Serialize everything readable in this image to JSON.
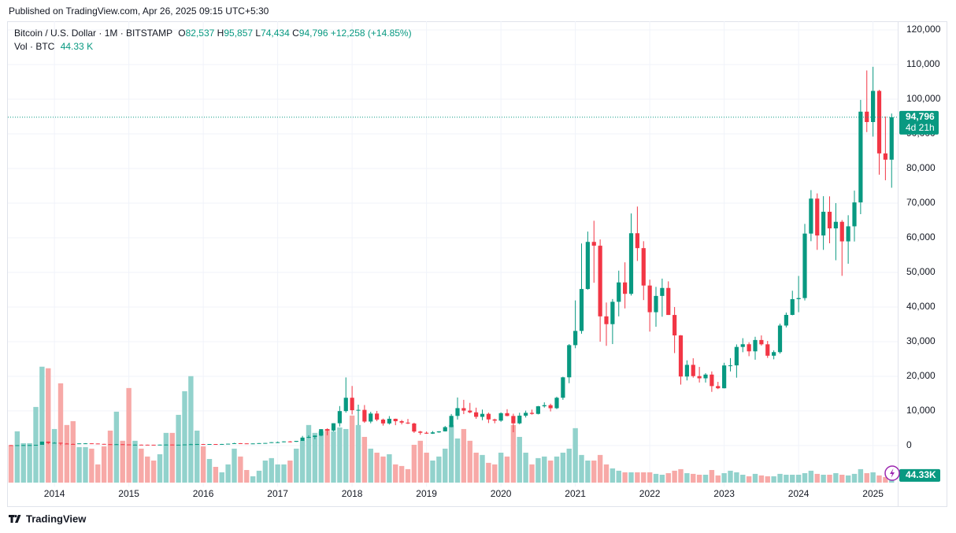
{
  "header": {
    "published": "Published on TradingView.com, Apr 26, 2025 09:15 UTC+5:30",
    "symbol": "Bitcoin / U.S. Dollar · 1M · BITSTAMP",
    "o_label": "O",
    "o": "82,537",
    "h_label": "H",
    "h": "95,857",
    "l_label": "L",
    "l": "74,434",
    "c_label": "C",
    "c": "94,796",
    "change": "+12,258 (+14.85%)",
    "vol_label": "Vol · BTC",
    "vol": "44.33 K"
  },
  "footer": {
    "brand": "TradingView"
  },
  "chart_data": {
    "type": "candlestick",
    "up_color": "#089981",
    "down_color": "#f23645",
    "vol_up_color": "#92d2cc",
    "vol_down_color": "#f7a9a7",
    "last_price_label": "94,796",
    "countdown": "4d 21h",
    "volume_label": "44.33K",
    "ylim": [
      -10700,
      122500
    ],
    "yticks": [
      0,
      {
        "value": 10000,
        "label": "10,000"
      },
      {
        "value": 20000,
        "label": "20,000"
      },
      {
        "value": 30000,
        "label": "30,000"
      },
      {
        "value": 40000,
        "label": "40,000"
      },
      {
        "value": 50000,
        "label": "50,000"
      },
      {
        "value": 60000,
        "label": "60,000"
      },
      {
        "value": 70000,
        "label": "70,000"
      },
      {
        "value": 80000,
        "label": "80,000"
      },
      {
        "value": 90000,
        "label": "90,000"
      },
      {
        "value": 100000,
        "label": "100,000"
      },
      {
        "value": 110000,
        "label": "110,000"
      },
      {
        "value": 120000,
        "label": "120,000"
      }
    ],
    "grid": true,
    "categories": [
      null,
      null,
      null,
      null,
      null,
      null,
      null,
      "2014",
      null,
      null,
      null,
      null,
      null,
      null,
      null,
      null,
      null,
      null,
      null,
      "2015",
      null,
      null,
      null,
      null,
      null,
      null,
      null,
      null,
      null,
      null,
      null,
      "2016",
      null,
      null,
      null,
      null,
      null,
      null,
      null,
      null,
      null,
      null,
      null,
      "2017",
      null,
      null,
      null,
      null,
      null,
      null,
      null,
      null,
      null,
      null,
      null,
      "2018",
      null,
      null,
      null,
      null,
      null,
      null,
      null,
      null,
      null,
      null,
      null,
      "2019",
      null,
      null,
      null,
      null,
      null,
      null,
      null,
      null,
      null,
      null,
      null,
      "2020",
      null,
      null,
      null,
      null,
      null,
      null,
      null,
      null,
      null,
      null,
      null,
      "2021",
      null,
      null,
      null,
      null,
      null,
      null,
      null,
      null,
      null,
      null,
      null,
      "2022",
      null,
      null,
      null,
      null,
      null,
      null,
      null,
      null,
      null,
      null,
      null,
      "2023",
      null,
      null,
      null,
      null,
      null,
      null,
      null,
      null,
      null,
      null,
      null,
      "2024",
      null,
      null,
      null,
      null,
      null,
      null,
      null,
      null,
      null,
      null,
      null,
      "2025",
      null,
      null,
      null
    ],
    "open": [
      129,
      97,
      106,
      141,
      141,
      211,
      1130,
      733,
      800,
      570,
      457,
      448,
      625,
      640,
      586,
      480,
      387,
      338,
      378,
      318,
      217,
      254,
      244,
      236,
      230,
      263,
      283,
      230,
      236,
      313,
      377,
      430,
      369,
      437,
      416,
      448,
      531,
      674,
      624,
      573,
      609,
      698,
      745,
      964,
      971,
      1190,
      1079,
      1348,
      2300,
      2480,
      2870,
      4730,
      4340,
      6440,
      9950,
      13800,
      10200,
      10300,
      6930,
      9240,
      7500,
      6390,
      7730,
      7030,
      6630,
      6370,
      4040,
      3690,
      3440,
      3810,
      4100,
      5320,
      8560,
      10800,
      10090,
      9590,
      8290,
      9150,
      7550,
      7190,
      9350,
      8540,
      6410,
      8630,
      9450,
      9140,
      11340,
      11650,
      10780,
      13800,
      19700,
      28990,
      33100,
      45200,
      58800,
      57700,
      37300,
      35050,
      41500,
      47100,
      43800,
      61300,
      57000,
      46200,
      38500,
      43200,
      45500,
      37700,
      31800,
      19930,
      23300,
      20050,
      19420,
      20490,
      17170,
      16540,
      23130,
      23150,
      28470,
      29250,
      27200,
      30470,
      29230,
      25940,
      26970,
      34650,
      37720,
      42270,
      42580,
      61200,
      71300,
      60650,
      67500,
      62700,
      64600,
      58950,
      63300,
      70200,
      96400,
      93400,
      102400,
      84350,
      82537
    ],
    "high": [
      129,
      111,
      140,
      145,
      220,
      1163,
      1164,
      995,
      844,
      720,
      544,
      627,
      680,
      650,
      600,
      495,
      420,
      460,
      380,
      320,
      265,
      300,
      260,
      248,
      268,
      317,
      286,
      248,
      330,
      502,
      469,
      462,
      447,
      440,
      468,
      550,
      777,
      704,
      630,
      628,
      734,
      760,
      979,
      1160,
      1210,
      1290,
      1350,
      2780,
      2980,
      2920,
      4740,
      4980,
      6470,
      11400,
      19666,
      17200,
      11800,
      11700,
      9760,
      9990,
      7780,
      8500,
      7760,
      7400,
      7680,
      6600,
      4240,
      4070,
      4200,
      4140,
      5640,
      9100,
      13880,
      13200,
      12320,
      10940,
      10370,
      9520,
      7750,
      9580,
      10500,
      9190,
      9460,
      10080,
      10380,
      11440,
      12470,
      12080,
      14100,
      19860,
      29300,
      41900,
      58350,
      61780,
      64900,
      59500,
      41300,
      42300,
      50500,
      52900,
      67000,
      69000,
      59000,
      47900,
      45800,
      48200,
      47400,
      40000,
      31900,
      24600,
      25200,
      22700,
      20900,
      21400,
      18400,
      23900,
      25250,
      29200,
      31000,
      29800,
      31400,
      31800,
      30200,
      27480,
      35200,
      38400,
      44700,
      48970,
      64000,
      73750,
      72800,
      72000,
      71950,
      70000,
      65100,
      66500,
      73600,
      99800,
      108300,
      109350,
      102700,
      95000,
      95857
    ],
    "low": [
      66,
      65,
      101,
      111,
      105,
      210,
      400,
      732,
      102,
      437,
      340,
      420,
      520,
      570,
      442,
      375,
      275,
      310,
      300,
      152,
      210,
      240,
      214,
      228,
      215,
      253,
      162,
      225,
      236,
      312,
      347,
      353,
      366,
      396,
      412,
      436,
      531,
      600,
      470,
      570,
      606,
      690,
      740,
      752,
      920,
      890,
      1060,
      1345,
      2140,
      1830,
      2680,
      2970,
      4110,
      5500,
      9500,
      9000,
      5900,
      6550,
      6430,
      7040,
      5750,
      6070,
      5880,
      6100,
      6200,
      3650,
      3120,
      3380,
      3370,
      3690,
      4060,
      5270,
      7500,
      9080,
      9320,
      7700,
      7300,
      6500,
      6430,
      6860,
      8450,
      3850,
      6150,
      8100,
      8930,
      8990,
      10950,
      9850,
      10520,
      13200,
      18000,
      28100,
      32300,
      45000,
      47000,
      30000,
      28800,
      29300,
      37300,
      39600,
      43300,
      53300,
      42000,
      32900,
      34300,
      37200,
      37700,
      26700,
      17600,
      18800,
      19600,
      18200,
      18200,
      15500,
      16300,
      16500,
      21400,
      19600,
      26950,
      25800,
      24800,
      28850,
      25300,
      24900,
      26550,
      34100,
      37600,
      38500,
      41880,
      59000,
      56500,
      56500,
      58400,
      53500,
      49000,
      52500,
      58900,
      66800,
      90500,
      89200,
      78200,
      76600,
      74434
    ],
    "close": [
      97,
      106,
      141,
      141,
      211,
      1130,
      733,
      800,
      570,
      457,
      448,
      625,
      640,
      586,
      480,
      387,
      338,
      378,
      318,
      217,
      254,
      244,
      236,
      230,
      263,
      283,
      230,
      236,
      313,
      377,
      430,
      369,
      437,
      416,
      448,
      531,
      674,
      624,
      573,
      609,
      698,
      745,
      964,
      971,
      1190,
      1079,
      1348,
      2300,
      2480,
      2870,
      4730,
      4340,
      6440,
      9950,
      13800,
      10200,
      10300,
      6930,
      9240,
      7500,
      6390,
      7730,
      7030,
      6630,
      6370,
      4040,
      3690,
      3440,
      3810,
      4100,
      5320,
      8560,
      10800,
      10090,
      9590,
      8290,
      9150,
      7550,
      7190,
      9350,
      8540,
      6410,
      8630,
      9450,
      9140,
      11340,
      11650,
      10780,
      13800,
      19700,
      28990,
      33100,
      45200,
      58800,
      57700,
      37300,
      35050,
      41500,
      47100,
      43800,
      61300,
      57000,
      46200,
      38500,
      43200,
      45500,
      37700,
      31800,
      19930,
      23300,
      20050,
      19420,
      20490,
      17170,
      16540,
      23130,
      23150,
      28470,
      29250,
      27200,
      30470,
      29230,
      25940,
      26970,
      34650,
      37720,
      42270,
      42580,
      61200,
      71300,
      60650,
      67500,
      62700,
      64600,
      58950,
      63300,
      70200,
      96400,
      93400,
      102400,
      84350,
      82537,
      94796
    ],
    "volume": [
      259,
      358,
      275,
      275,
      528,
      809,
      798,
      374,
      693,
      402,
      429,
      248,
      248,
      237,
      127,
      253,
      363,
      495,
      292,
      660,
      292,
      237,
      182,
      154,
      198,
      347,
      347,
      473,
      638,
      743,
      363,
      253,
      165,
      110,
      72,
      127,
      237,
      182,
      88,
      44,
      83,
      154,
      171,
      127,
      127,
      154,
      237,
      292,
      402,
      347,
      358,
      374,
      358,
      385,
      374,
      468,
      402,
      319,
      237,
      209,
      182,
      198,
      127,
      116,
      94,
      264,
      292,
      209,
      154,
      182,
      237,
      402,
      308,
      374,
      292,
      209,
      193,
      138,
      127,
      209,
      182,
      402,
      319,
      209,
      127,
      171,
      182,
      154,
      182,
      209,
      237,
      380,
      193,
      154,
      154,
      193,
      127,
      99,
      83,
      72,
      72,
      72,
      72,
      72,
      61,
      55,
      66,
      83,
      94,
      66,
      61,
      55,
      55,
      88,
      50,
      66,
      83,
      72,
      55,
      44,
      61,
      50,
      44,
      44,
      61,
      55,
      55,
      55,
      66,
      83,
      61,
      55,
      55,
      66,
      55,
      50,
      61,
      94,
      66,
      72,
      50,
      39,
      44.33
    ]
  }
}
